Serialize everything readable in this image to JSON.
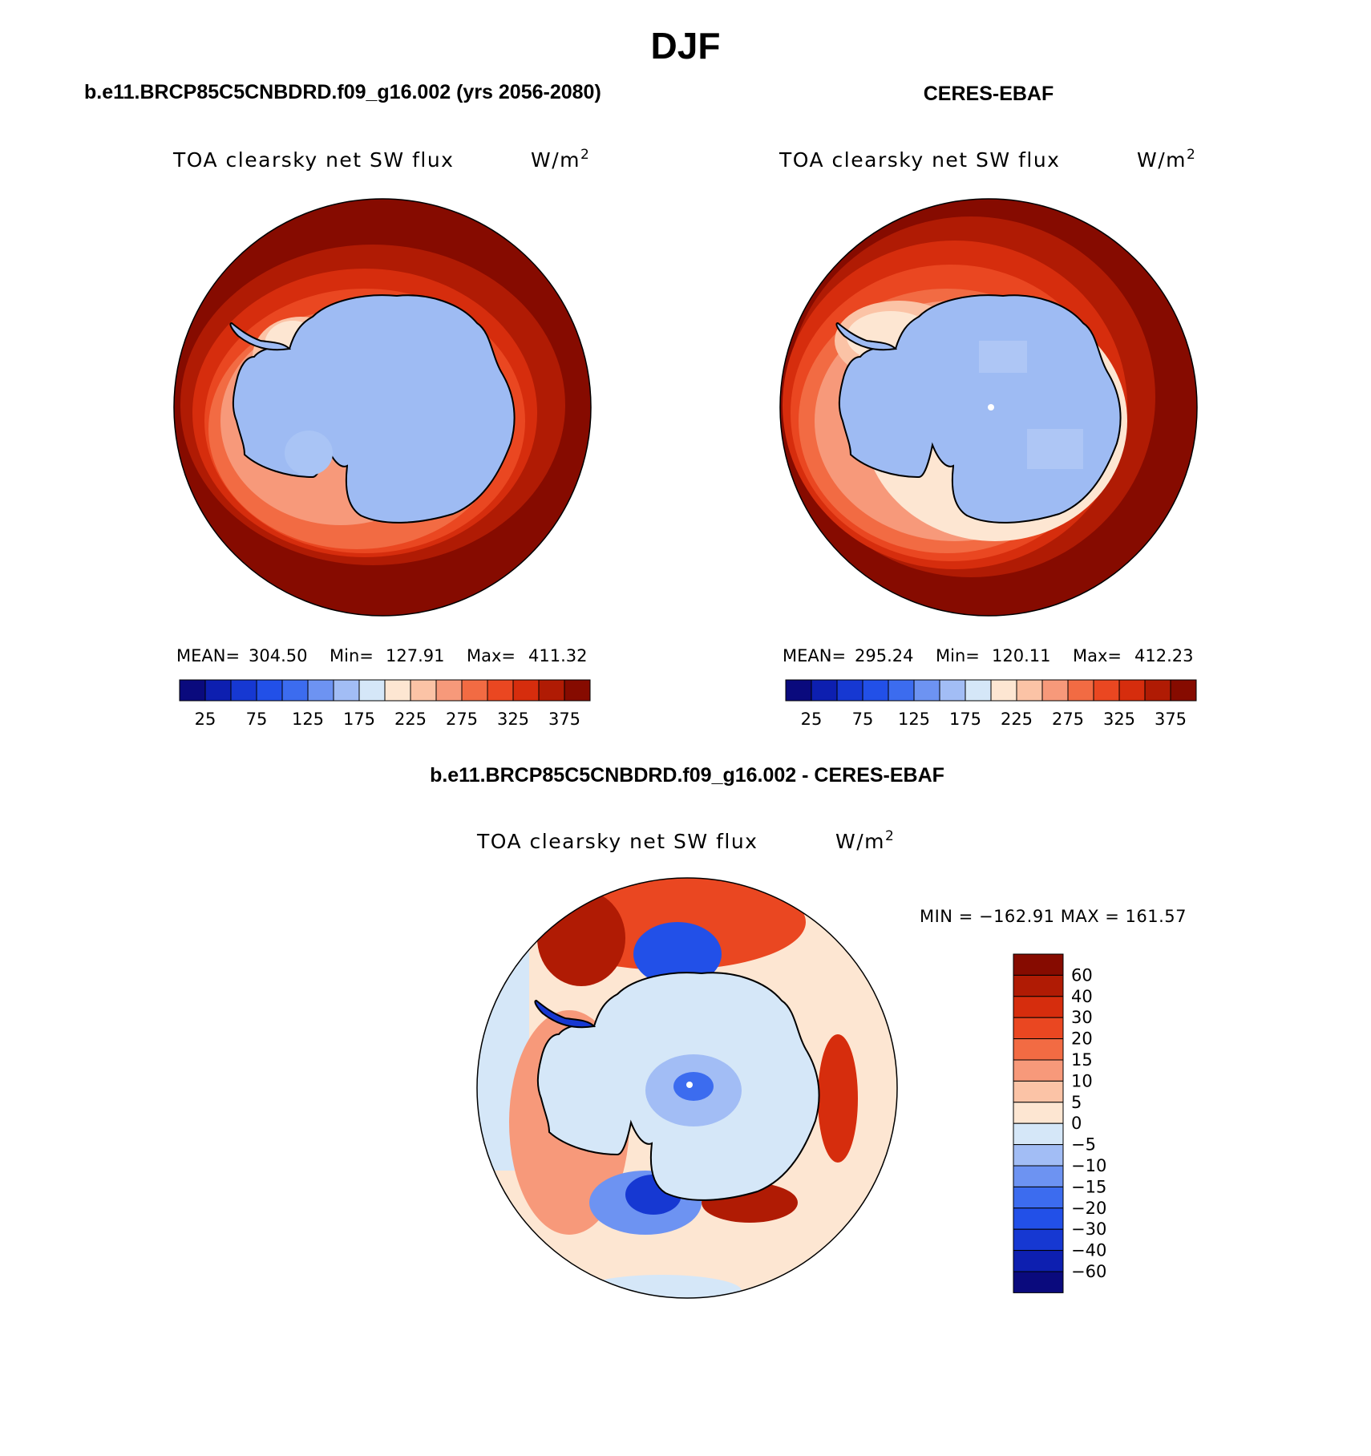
{
  "page_title": "DJF",
  "chart_data": [
    {
      "type": "heatmap",
      "projection": "south-polar-stereographic",
      "title": "b.e11.BRCP85C5CNBDRD.f09_g16.002 (yrs 2056-2080)",
      "subtitle": "TOA clearsky net SW flux",
      "units": "W/m²",
      "stats": {
        "mean_label": "MEAN=",
        "mean": "304.50",
        "min_label": "Min=",
        "min": "127.91",
        "max_label": "Max=",
        "max": "411.32"
      },
      "colorbar": {
        "orientation": "horizontal",
        "levels": [
          0,
          25,
          50,
          75,
          100,
          125,
          150,
          175,
          200,
          225,
          250,
          275,
          300,
          325,
          350,
          375
        ],
        "tick_labels": [
          "25",
          "75",
          "125",
          "175",
          "225",
          "275",
          "325",
          "375"
        ]
      }
    },
    {
      "type": "heatmap",
      "projection": "south-polar-stereographic",
      "title": "CERES-EBAF",
      "subtitle": "TOA clearsky net SW flux",
      "units": "W/m²",
      "stats": {
        "mean_label": "MEAN=",
        "mean": "295.24",
        "min_label": "Min=",
        "min": "120.11",
        "max_label": "Max=",
        "max": "412.23"
      },
      "colorbar": {
        "orientation": "horizontal",
        "levels": [
          0,
          25,
          50,
          75,
          100,
          125,
          150,
          175,
          200,
          225,
          250,
          275,
          300,
          325,
          350,
          375
        ],
        "tick_labels": [
          "25",
          "75",
          "125",
          "175",
          "225",
          "275",
          "325",
          "375"
        ]
      }
    },
    {
      "type": "heatmap",
      "projection": "south-polar-stereographic",
      "title": "b.e11.BRCP85C5CNBDRD.f09_g16.002 - CERES-EBAF",
      "subtitle": "TOA clearsky net SW flux",
      "units": "W/m²",
      "stats_text": "MIN = −162.91 MAX = 161.57",
      "colorbar": {
        "orientation": "vertical",
        "levels": [
          -60,
          -40,
          -30,
          -20,
          -15,
          -10,
          -5,
          0,
          5,
          10,
          15,
          20,
          30,
          40,
          60
        ],
        "tick_labels": [
          "60",
          "40",
          "30",
          "20",
          "15",
          "10",
          "5",
          "0",
          "−5",
          "−10",
          "−15",
          "−20",
          "−30",
          "−40",
          "−60"
        ]
      }
    }
  ],
  "colors": {
    "abs_palette": [
      "#0a0a7d",
      "#0d1fb0",
      "#1638d2",
      "#2250e8",
      "#3c6cef",
      "#6d93f2",
      "#a2bdf5",
      "#d5e7f8",
      "#fde6d2",
      "#fbc3a6",
      "#f7997a",
      "#f26b43",
      "#ea4721",
      "#d62d0d",
      "#b01b04",
      "#860b00"
    ],
    "diff_palette": [
      "#0a0a7d",
      "#0d1fb0",
      "#1638d2",
      "#2250e8",
      "#3c6cef",
      "#6d93f2",
      "#a2bdf5",
      "#d5e7f8",
      "#fde6d2",
      "#fbc3a6",
      "#f7997a",
      "#f26b43",
      "#ea4721",
      "#d62d0d",
      "#b01b04",
      "#860b00"
    ],
    "antarctica": "#9ebbf3",
    "coast": "#000000"
  }
}
